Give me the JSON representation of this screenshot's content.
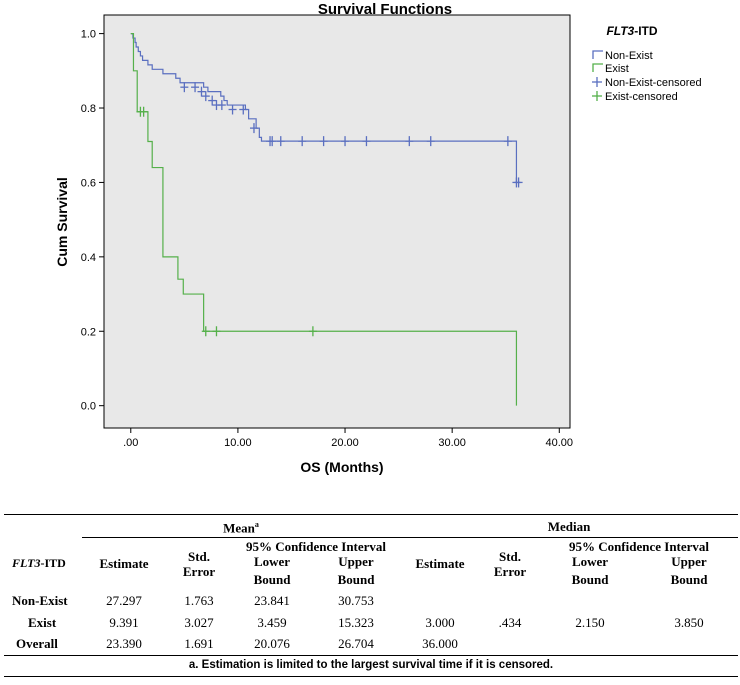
{
  "chart_data": {
    "type": "line",
    "title": "Survival Functions",
    "xlabel": "OS (Months)",
    "ylabel": "Cum Survival",
    "xlim": [
      -2.5,
      41.0
    ],
    "ylim": [
      -0.06,
      1.05
    ],
    "xticks": [
      0,
      10,
      20,
      30,
      40
    ],
    "xtick_labels": [
      ".00",
      "10.00",
      "20.00",
      "30.00",
      "40.00"
    ],
    "yticks": [
      0.0,
      0.2,
      0.4,
      0.6,
      0.8,
      1.0
    ],
    "ytick_labels": [
      "0.0",
      "0.2",
      "0.4",
      "0.6",
      "0.8",
      "1.0"
    ],
    "legend_title_italic": "FLT3",
    "legend_title_rest": "-ITD",
    "legend_position": "right",
    "legend_entries": [
      "Non-Exist",
      "Exist",
      "Non-Exist-censored",
      "Exist-censored"
    ],
    "colors": {
      "non_exist": "#5a6fc0",
      "exist": "#55b04a",
      "plot_bg": "#e8e8e8"
    },
    "series": [
      {
        "name": "Non-Exist",
        "steps": [
          [
            0,
            1.0
          ],
          [
            0.2,
            0.988
          ],
          [
            0.4,
            0.976
          ],
          [
            0.5,
            0.964
          ],
          [
            0.7,
            0.952
          ],
          [
            0.9,
            0.94
          ],
          [
            1.1,
            0.928
          ],
          [
            1.6,
            0.916
          ],
          [
            2.0,
            0.904
          ],
          [
            3.0,
            0.892
          ],
          [
            4.2,
            0.88
          ],
          [
            4.6,
            0.868
          ],
          [
            6.8,
            0.856
          ],
          [
            7.2,
            0.844
          ],
          [
            8.4,
            0.832
          ],
          [
            8.7,
            0.82
          ],
          [
            9.0,
            0.808
          ],
          [
            10.7,
            0.796
          ],
          [
            11.0,
            0.771
          ],
          [
            11.7,
            0.746
          ],
          [
            12.0,
            0.721
          ],
          [
            12.2,
            0.711
          ],
          [
            36.0,
            0.6
          ]
        ],
        "end_x": 36.0,
        "censored": [
          [
            5.0,
            0.856
          ],
          [
            6.0,
            0.856
          ],
          [
            6.6,
            0.844
          ],
          [
            7.0,
            0.832
          ],
          [
            7.6,
            0.82
          ],
          [
            8.0,
            0.808
          ],
          [
            8.5,
            0.808
          ],
          [
            9.5,
            0.796
          ],
          [
            10.5,
            0.796
          ],
          [
            11.5,
            0.746
          ],
          [
            13.0,
            0.711
          ],
          [
            13.2,
            0.711
          ],
          [
            14.0,
            0.711
          ],
          [
            16.0,
            0.711
          ],
          [
            18.0,
            0.711
          ],
          [
            20.0,
            0.711
          ],
          [
            22.0,
            0.711
          ],
          [
            26.0,
            0.711
          ],
          [
            28.0,
            0.711
          ],
          [
            35.2,
            0.711
          ],
          [
            36.0,
            0.6
          ],
          [
            36.2,
            0.6
          ]
        ]
      },
      {
        "name": "Exist",
        "steps": [
          [
            0,
            1.0
          ],
          [
            0.25,
            0.9
          ],
          [
            0.6,
            0.79
          ],
          [
            1.6,
            0.71
          ],
          [
            2.0,
            0.64
          ],
          [
            3.0,
            0.4
          ],
          [
            4.4,
            0.34
          ],
          [
            4.9,
            0.3
          ],
          [
            6.8,
            0.2
          ],
          [
            36.0,
            0.0
          ]
        ],
        "end_x": 36.0,
        "censored": [
          [
            0.9,
            0.79
          ],
          [
            1.2,
            0.79
          ],
          [
            7.0,
            0.2
          ],
          [
            8.0,
            0.2
          ],
          [
            17.0,
            0.2
          ]
        ]
      }
    ]
  },
  "table": {
    "row_label_italic": "FLT3",
    "row_label_rest": "-ITD",
    "mean_label": "Mean",
    "mean_sup": "a",
    "median_label": "Median",
    "estimate": "Estimate",
    "std1": "Std.",
    "std2": "Error",
    "ci": "95% Confidence Interval",
    "lower1": "Lower",
    "upper1": "Upper",
    "bound": "Bound",
    "rows": [
      {
        "name": "Non-Exist",
        "mean_est": "27.297",
        "mean_se": "1.763",
        "mean_lo": "23.841",
        "mean_hi": "30.753",
        "med_est": "",
        "med_se": "",
        "med_lo": "",
        "med_hi": ""
      },
      {
        "name": "Exist",
        "mean_est": "9.391",
        "mean_se": "3.027",
        "mean_lo": "3.459",
        "mean_hi": "15.323",
        "med_est": "3.000",
        "med_se": ".434",
        "med_lo": "2.150",
        "med_hi": "3.850"
      },
      {
        "name": "Overall",
        "mean_est": "23.390",
        "mean_se": "1.691",
        "mean_lo": "20.076",
        "mean_hi": "26.704",
        "med_est": "36.000",
        "med_se": "",
        "med_lo": "",
        "med_hi": ""
      }
    ],
    "note": "a. Estimation is limited to the largest survival time if it is censored."
  }
}
